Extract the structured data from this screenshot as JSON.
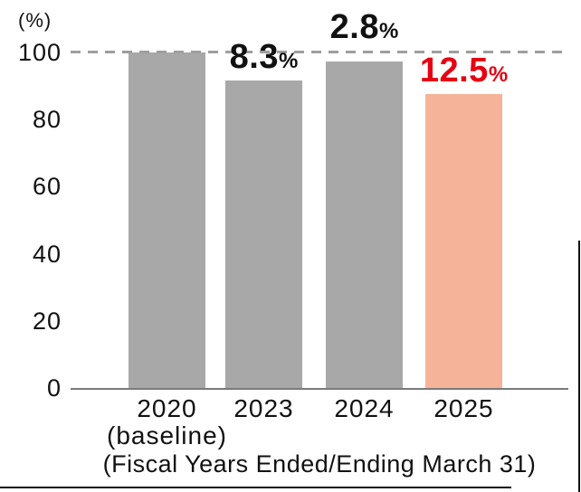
{
  "chart_data": {
    "type": "bar",
    "unit_label": "(%)",
    "xlabel": "(Fiscal Years Ended/Ending March 31)",
    "ylim": [
      0,
      100
    ],
    "yticks": [
      100,
      80,
      60,
      40,
      20,
      0
    ],
    "reference_line_value": 100,
    "reference_line_style": "dashed",
    "categories": [
      "2020",
      "2023",
      "2024",
      "2025"
    ],
    "category_sublabels": [
      "(baseline)",
      "",
      "",
      ""
    ],
    "values": [
      100,
      91.7,
      97.2,
      87.5
    ],
    "bar_colors": [
      "#a8a8a8",
      "#a8a8a8",
      "#a8a8a8",
      "#f5b39a"
    ],
    "annotations": [
      {
        "category": "2020",
        "number": "",
        "suffix": "",
        "color": "#111111"
      },
      {
        "category": "2023",
        "number": "8.3",
        "suffix": "%",
        "color": "#111111"
      },
      {
        "category": "2024",
        "number": "2.8",
        "suffix": "%",
        "color": "#111111"
      },
      {
        "category": "2025",
        "number": "12.5",
        "suffix": "%",
        "color": "#e60012"
      }
    ]
  },
  "colors": {
    "bar_gray": "#a8a8a8",
    "bar_highlight": "#f5b39a",
    "annotation_red": "#e60012",
    "text": "#111111",
    "dashed_line": "#9e9e9e",
    "axis_line": "#7a7a7a",
    "page_border": "#111111"
  }
}
